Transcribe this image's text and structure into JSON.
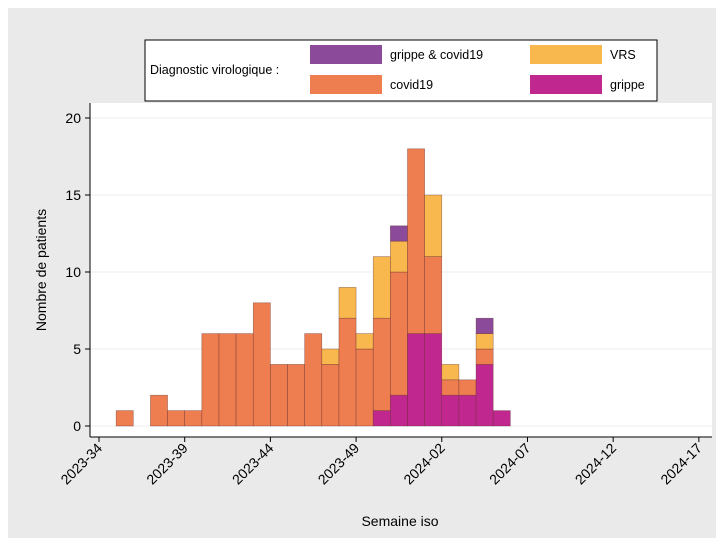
{
  "chart_data": {
    "type": "bar",
    "stacked": true,
    "x_title": "Semaine iso",
    "y_title": "Nombre de patients",
    "legend_title": "Diagnostic virologique :",
    "x": [
      "2023-35",
      "2023-37",
      "2023-38",
      "2023-39",
      "2023-40",
      "2023-41",
      "2023-42",
      "2023-43",
      "2023-44",
      "2023-45",
      "2023-46",
      "2023-47",
      "2023-48",
      "2023-49",
      "2023-50",
      "2023-51",
      "2023-52",
      "2024-01",
      "2024-02",
      "2024-03",
      "2024-04",
      "2024-05"
    ],
    "series": [
      {
        "name": "grippe",
        "color": "#c1288f",
        "values": [
          0,
          0,
          0,
          0,
          0,
          0,
          0,
          0,
          0,
          0,
          0,
          0,
          0,
          0,
          1,
          2,
          6,
          6,
          2,
          2,
          4,
          1
        ]
      },
      {
        "name": "covid19",
        "color": "#ee7d50",
        "values": [
          1,
          2,
          1,
          1,
          6,
          6,
          6,
          8,
          4,
          4,
          6,
          4,
          7,
          5,
          6,
          8,
          12,
          5,
          1,
          1,
          1,
          0
        ]
      },
      {
        "name": "VRS",
        "color": "#f8b84e",
        "values": [
          0,
          0,
          0,
          0,
          0,
          0,
          0,
          0,
          0,
          0,
          0,
          1,
          2,
          1,
          4,
          2,
          0,
          4,
          1,
          0,
          1,
          0
        ]
      },
      {
        "name": "grippe & covid19",
        "color": "#8c4a9b",
        "values": [
          0,
          0,
          0,
          0,
          0,
          0,
          0,
          0,
          0,
          0,
          0,
          0,
          0,
          0,
          0,
          1,
          0,
          0,
          0,
          0,
          1,
          0
        ]
      }
    ],
    "xlim": [
      "2023-34",
      "2024-18"
    ],
    "xticks": [
      "2023-34",
      "2023-39",
      "2023-44",
      "2023-49",
      "2024-02",
      "2024-07",
      "2024-12",
      "2024-17"
    ],
    "ylim": [
      0,
      20
    ],
    "yticks": [
      0,
      5,
      10,
      15,
      20
    ],
    "grid": true
  }
}
